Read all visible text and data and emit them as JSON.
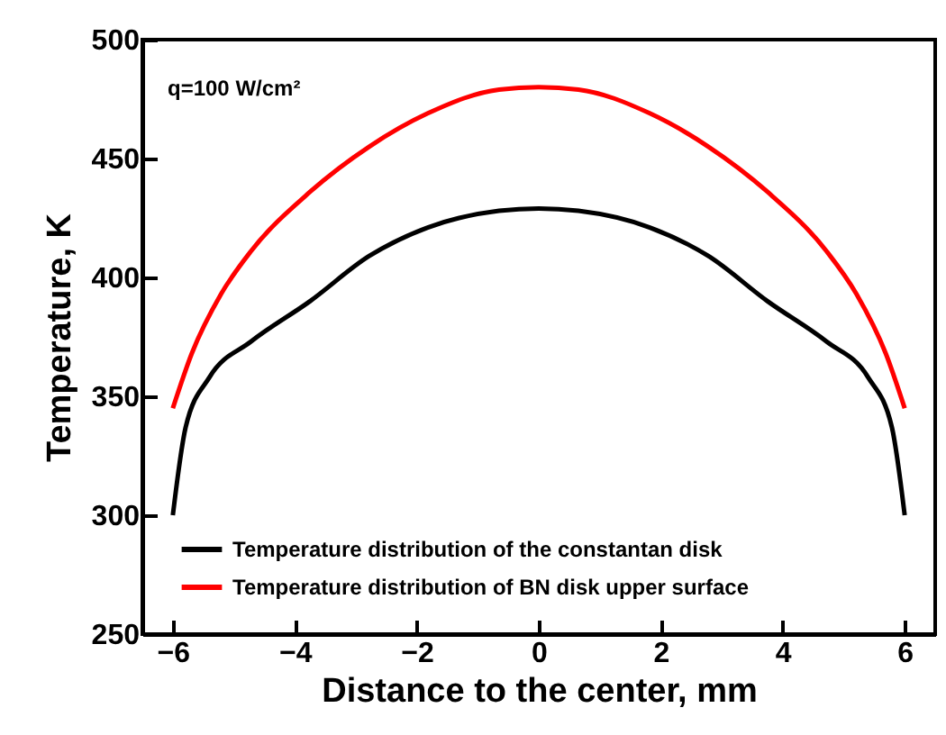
{
  "chart_data": {
    "type": "line",
    "xlabel": "Distance to the center, mm",
    "ylabel": "Temperature, K",
    "annotations": [
      "q=100 W/cm²"
    ],
    "x": [
      -6,
      -5.79,
      -5.4,
      -4.72,
      -3.75,
      -2.78,
      -1.82,
      -0.65,
      0,
      0.65,
      1.82,
      2.78,
      3.75,
      4.72,
      5.4,
      5.79,
      6
    ],
    "series": [
      {
        "name": "Temperature distribution of the constantan disk",
        "color": "#000000",
        "values": [
          300,
          337,
          358,
          373,
          390,
          409,
          421,
          428,
          429,
          428,
          421,
          409,
          390,
          373,
          358,
          337,
          300
        ]
      },
      {
        "name": "Temperature distribution of  BN disk upper surface",
        "color": "#ff0000",
        "x": [
          -6,
          -5.69,
          -5.21,
          -4.72,
          -3.75,
          -2.78,
          -1.82,
          -0.65,
          0,
          0.65,
          1.82,
          2.78,
          3.75,
          4.72,
          5.21,
          5.69,
          6
        ],
        "values": [
          345,
          368,
          393,
          411,
          436,
          455,
          469,
          479,
          480,
          479,
          469,
          455,
          436,
          411,
          393,
          368,
          345
        ]
      }
    ],
    "xlim": [
      -6.5,
      6.5
    ],
    "xticks": [
      -6,
      -4,
      -2,
      0,
      2,
      4,
      6
    ],
    "ylim": [
      250,
      500
    ],
    "yticks": [
      250,
      300,
      350,
      400,
      450,
      500
    ],
    "legend": "bottom left",
    "grid": false,
    "line_style": "solid"
  }
}
